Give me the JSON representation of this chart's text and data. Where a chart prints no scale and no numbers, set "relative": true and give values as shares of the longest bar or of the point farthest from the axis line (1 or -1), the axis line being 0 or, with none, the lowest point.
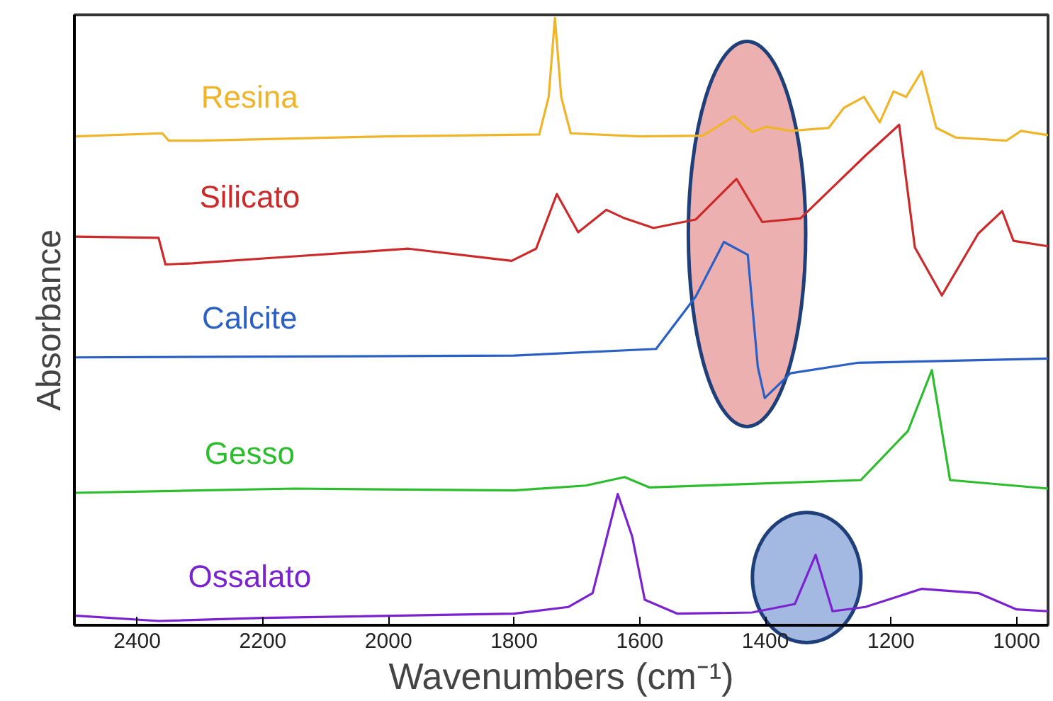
{
  "chart_data": {
    "type": "line",
    "xlabel": "Wavenumbers (cm⁻¹)",
    "ylabel": "Absorbance",
    "relative": true,
    "xlim": [
      2500,
      950
    ],
    "xticks": [
      2400,
      2200,
      2000,
      1800,
      1600,
      1400,
      1200,
      1000
    ],
    "tick_labels": "x",
    "grid": false,
    "marker": "none",
    "line_style": "solid",
    "series": [
      {
        "name": "Resina",
        "color": "#f0b429",
        "x": [
          2500,
          2360,
          2350,
          2300,
          2000,
          1760,
          1745,
          1735,
          1725,
          1710,
          1600,
          1500,
          1450,
          1421,
          1398,
          1360,
          1299,
          1275,
          1243,
          1218,
          1196,
          1176,
          1151,
          1128,
          1097,
          1016,
          993,
          950
        ],
        "values": [
          0.805,
          0.81,
          0.798,
          0.798,
          0.805,
          0.808,
          0.87,
          1.0,
          0.87,
          0.81,
          0.805,
          0.806,
          0.838,
          0.812,
          0.821,
          0.814,
          0.819,
          0.852,
          0.87,
          0.828,
          0.879,
          0.87,
          0.912,
          0.819,
          0.803,
          0.798,
          0.814,
          0.807
        ]
      },
      {
        "name": "Silicato",
        "color": "#cc2a2a",
        "x": [
          2500,
          2366,
          2355,
          2312,
          2170,
          1968,
          1804,
          1765,
          1732,
          1698,
          1653,
          1624,
          1578,
          1511,
          1446,
          1405,
          1344,
          1241,
          1187,
          1162,
          1119,
          1061,
          1023,
          1005,
          950
        ],
        "values": [
          0.64,
          0.638,
          0.594,
          0.596,
          0.606,
          0.62,
          0.6,
          0.62,
          0.71,
          0.647,
          0.684,
          0.67,
          0.654,
          0.668,
          0.735,
          0.664,
          0.67,
          0.773,
          0.824,
          0.622,
          0.543,
          0.645,
          0.682,
          0.633,
          0.624
        ]
      },
      {
        "name": "Calcite",
        "color": "#2a5fc4",
        "x": [
          2500,
          1800,
          1574,
          1511,
          1466,
          1428,
          1412,
          1401,
          1360,
          1254,
          950
        ],
        "values": [
          0.441,
          0.444,
          0.455,
          0.541,
          0.631,
          0.61,
          0.425,
          0.374,
          0.415,
          0.432,
          0.439
        ]
      },
      {
        "name": "Gesso",
        "color": "#2cbd2c",
        "x": [
          2500,
          2150,
          1800,
          1686,
          1624,
          1585,
          1248,
          1173,
          1135,
          1106,
          950
        ],
        "values": [
          0.218,
          0.225,
          0.222,
          0.23,
          0.244,
          0.227,
          0.239,
          0.32,
          0.42,
          0.239,
          0.225
        ]
      },
      {
        "name": "Ossalato",
        "color": "#7b22d0",
        "x": [
          2500,
          2366,
          2200,
          1800,
          1714,
          1675,
          1635,
          1612,
          1592,
          1540,
          1421,
          1353,
          1320,
          1293,
          1241,
          1151,
          1061,
          1000,
          950
        ],
        "values": [
          0.016,
          0.007,
          0.012,
          0.019,
          0.03,
          0.053,
          0.216,
          0.146,
          0.042,
          0.019,
          0.021,
          0.035,
          0.116,
          0.023,
          0.03,
          0.06,
          0.053,
          0.026,
          0.023
        ]
      }
    ]
  }
}
